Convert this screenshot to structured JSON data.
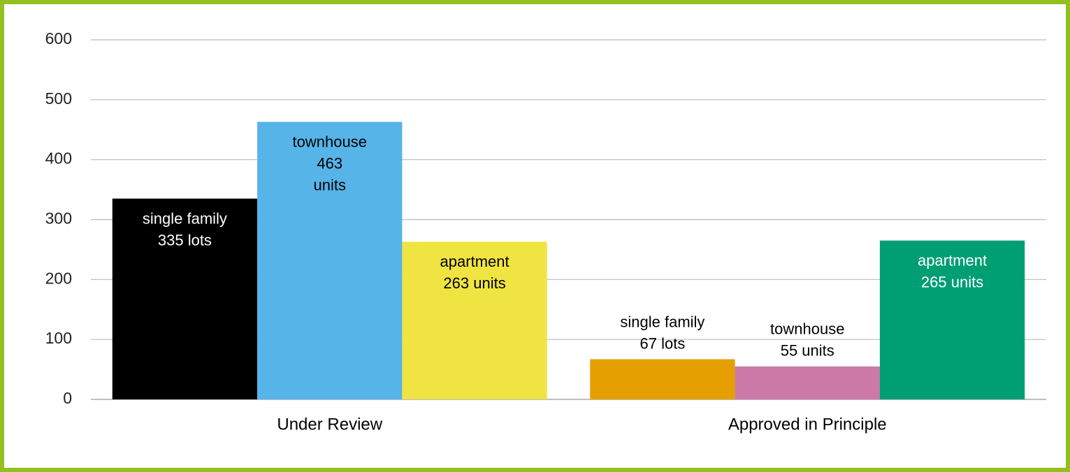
{
  "chart_data": {
    "type": "bar",
    "categories": [
      "Under Review",
      "Approved in Principle"
    ],
    "series": [
      {
        "colors": [
          "#000000",
          "#e69f00"
        ],
        "values": [
          335,
          67
        ],
        "value_labels": [
          [
            "single family",
            "335 lots"
          ],
          [
            "single family",
            "67 lots"
          ]
        ]
      },
      {
        "colors": [
          "#56b4e9",
          "#cc79a7"
        ],
        "values": [
          463,
          55
        ],
        "value_labels": [
          [
            "townhouse",
            "463",
            "units"
          ],
          [
            "townhouse",
            "55 units"
          ]
        ]
      },
      {
        "colors": [
          "#f0e442",
          "#009e73"
        ],
        "values": [
          263,
          265
        ],
        "value_labels": [
          [
            "apartment",
            "263 units"
          ],
          [
            "apartment",
            "265 units"
          ]
        ]
      }
    ],
    "ylim": [
      0,
      600
    ],
    "yticks": [
      0,
      100,
      200,
      300,
      400,
      500,
      600
    ],
    "grid": true
  }
}
